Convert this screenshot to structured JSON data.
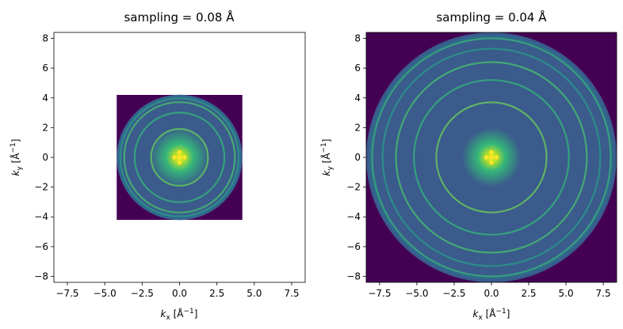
{
  "chart_data": [
    {
      "type": "heatmap",
      "title": "sampling = 0.08 Å",
      "xlabel": "k_x [Å⁻¹]",
      "ylabel": "k_y [Å⁻¹]",
      "xlim": [
        -8.4,
        8.4
      ],
      "ylim": [
        -8.4,
        8.4
      ],
      "x_ticks": [
        -7.5,
        -5.0,
        -2.5,
        0.0,
        2.5,
        5.0,
        7.5
      ],
      "x_tick_labels": [
        "−7.5",
        "−5.0",
        "−2.5",
        "0.0",
        "2.5",
        "5.0",
        "7.5"
      ],
      "y_ticks": [
        -8,
        -6,
        -4,
        -2,
        0,
        2,
        4,
        6,
        8
      ],
      "y_tick_labels": [
        "−8",
        "−6",
        "−4",
        "−2",
        "0",
        "2",
        "4",
        "6",
        "8"
      ],
      "image_extent": [
        -4.2,
        4.2,
        -4.2,
        4.2
      ],
      "aperture_radius": 4.2,
      "rings": [
        1.9,
        3.0,
        3.7,
        3.95
      ],
      "colormap": "viridis",
      "background_color": "#440154",
      "disc_color": "#3a5b8c"
    },
    {
      "type": "heatmap",
      "title": "sampling = 0.04 Å",
      "xlabel": "k_x [Å⁻¹]",
      "ylabel": "k_y [Å⁻¹]",
      "xlim": [
        -8.4,
        8.4
      ],
      "ylim": [
        -8.4,
        8.4
      ],
      "x_ticks": [
        -7.5,
        -5.0,
        -2.5,
        0.0,
        2.5,
        5.0,
        7.5
      ],
      "x_tick_labels": [
        "−7.5",
        "−5.0",
        "−2.5",
        "0.0",
        "2.5",
        "5.0",
        "7.5"
      ],
      "y_ticks": [
        -8,
        -6,
        -4,
        -2,
        0,
        2,
        4,
        6,
        8
      ],
      "y_tick_labels": [
        "−8",
        "−6",
        "−4",
        "−2",
        "0",
        "2",
        "4",
        "6",
        "8"
      ],
      "image_extent": [
        -8.4,
        8.4,
        -8.4,
        8.4
      ],
      "aperture_radius": 8.4,
      "rings": [
        3.7,
        5.2,
        6.4,
        7.3,
        8.0
      ],
      "colormap": "viridis",
      "background_color": "#440154",
      "disc_color": "#3a5b8c"
    }
  ]
}
